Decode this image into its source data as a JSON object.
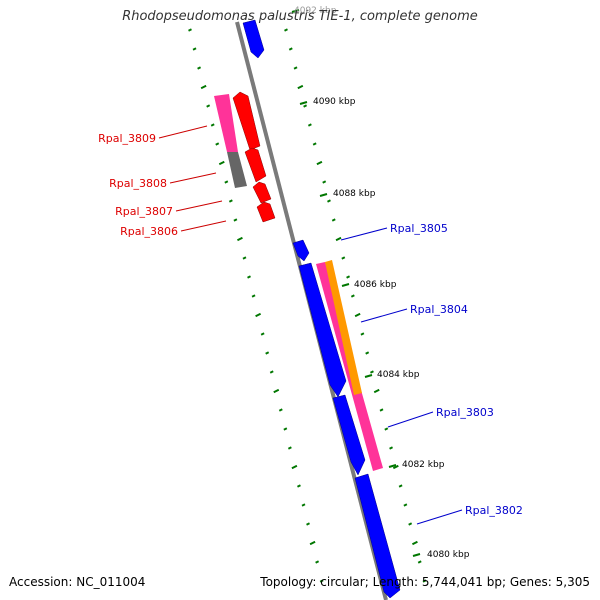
{
  "title": "Rhodopseudomonas palustris TIE-1, complete genome",
  "footer": {
    "accession_label": "Accession:",
    "accession": "NC_011004",
    "topology_label": "Topology:",
    "topology": "circular",
    "length_label": "Length:",
    "length": "5,744,041 bp",
    "genes_label": "Genes:",
    "genes": "5,305"
  },
  "ticks": [
    "4092 kbp",
    "4090 kbp",
    "4088 kbp",
    "4086 kbp",
    "4084 kbp",
    "4082 kbp",
    "4080 kbp"
  ],
  "genes": {
    "forward": [
      {
        "label": "Rpal_3805",
        "color": "#0000dd"
      },
      {
        "label": "Rpal_3804",
        "color": "#0000dd"
      },
      {
        "label": "Rpal_3803",
        "color": "#0000dd"
      },
      {
        "label": "Rpal_3802",
        "color": "#0000dd"
      }
    ],
    "reverse": [
      {
        "label": "Rpal_3809",
        "color": "#dd0000"
      },
      {
        "label": "Rpal_3808",
        "color": "#dd0000"
      },
      {
        "label": "Rpal_3807",
        "color": "#dd0000"
      },
      {
        "label": "Rpal_3806",
        "color": "#dd0000"
      }
    ]
  },
  "colors": {
    "backbone": "#808080",
    "forward_cds": "#0000ff",
    "reverse_cds": "#ff0000",
    "gc_skew_dots": "#007700",
    "feature_pink": "#ff3399",
    "feature_orange": "#ff9900",
    "feature_gray": "#666666"
  }
}
